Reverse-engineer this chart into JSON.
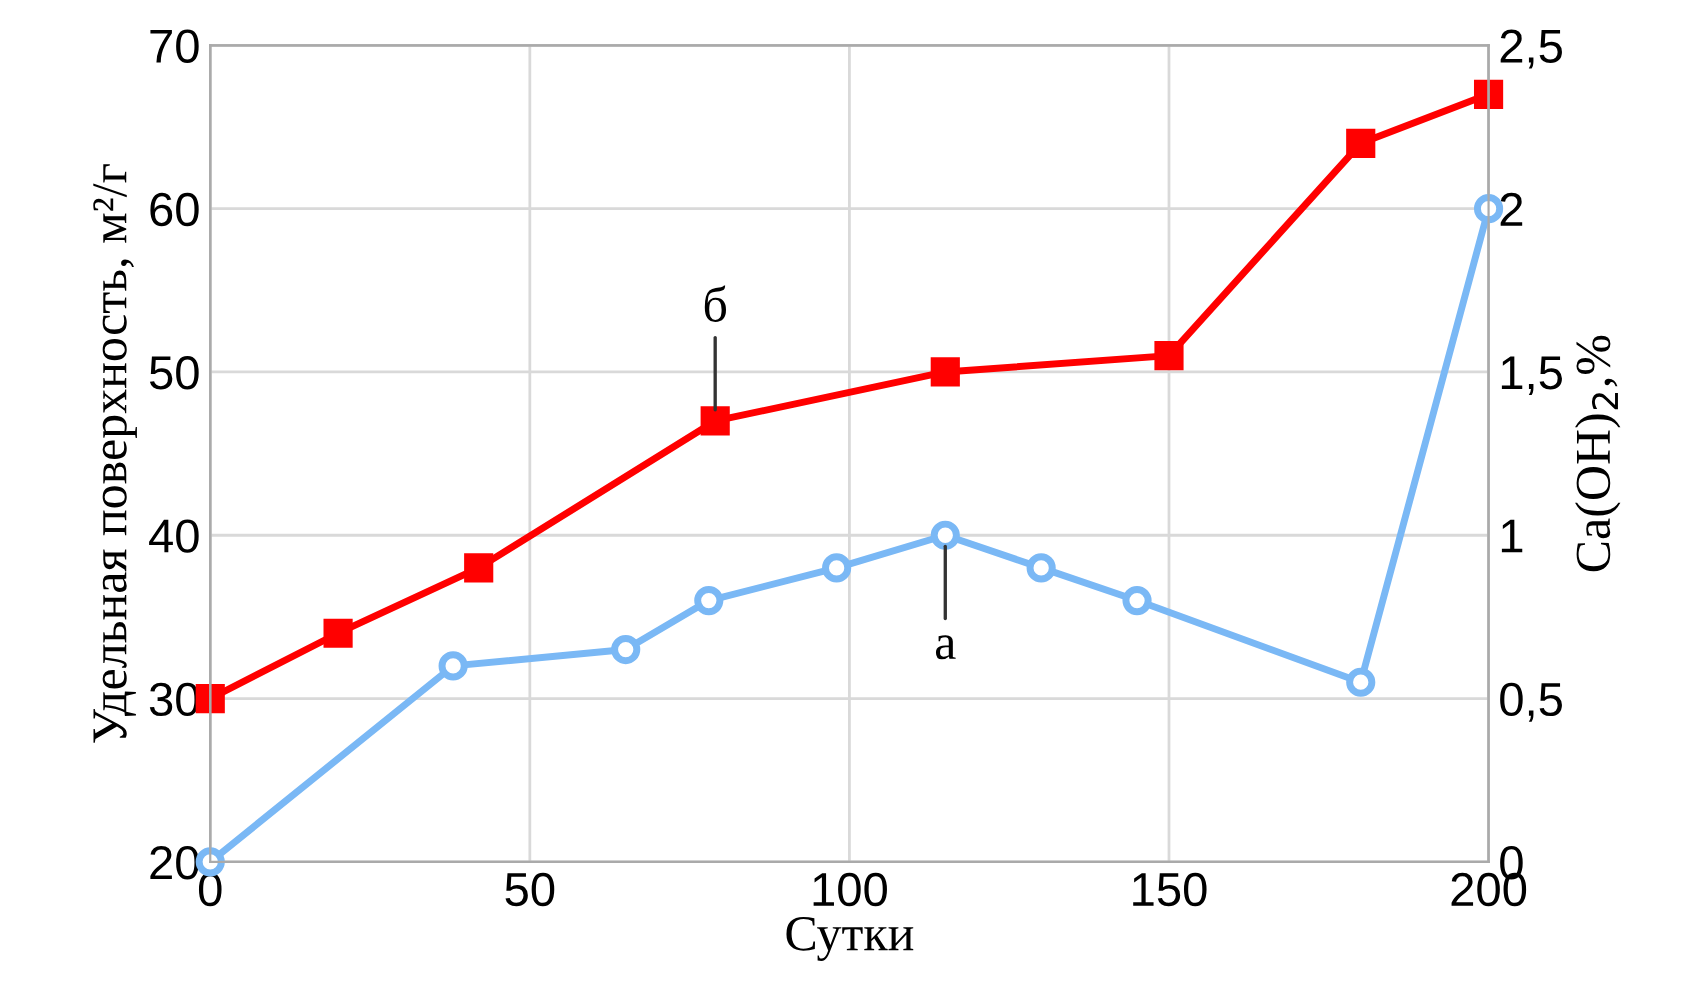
{
  "chart_data": {
    "type": "line",
    "xlabel": "Сутки",
    "ylabel": "Удельная поверхность, м²/г",
    "y2label": "Ca(OH)$_{2}$,%",
    "series": [
      {
        "color": "#ff0000",
        "marker": "square",
        "x": [
          0,
          20,
          42,
          79,
          115,
          150,
          180,
          200
        ],
        "values": [
          30,
          34,
          38,
          47,
          50,
          51,
          64,
          67
        ]
      },
      {
        "color": "#7ab8f5",
        "marker": "circle",
        "axis": "y2",
        "x": [
          0,
          38,
          65,
          78,
          98,
          115,
          130,
          145,
          180,
          200
        ],
        "values": [
          0,
          0.6,
          0.65,
          0.8,
          0.9,
          1.0,
          0.9,
          0.8,
          0.55,
          2.0
        ]
      }
    ],
    "annotations": [
      {
        "text": "б",
        "x": 79,
        "y": 47
      },
      {
        "text": "а",
        "x": 115,
        "y": 40
      }
    ],
    "xlim": [
      0,
      200
    ],
    "xticks": [
      0,
      50,
      100,
      150,
      200
    ],
    "ylim": [
      20,
      70
    ],
    "yticks": [
      20,
      30,
      40,
      50,
      60,
      70
    ],
    "y2lim": [
      0,
      2.5
    ],
    "y2ticks": [
      0,
      {
        "value": 0.5,
        "label": "0,5"
      },
      1,
      {
        "value": 1.5,
        "label": "1,5"
      },
      2,
      {
        "value": 2.5,
        "label": "2,5"
      }
    ],
    "grid": true,
    "legend": false,
    "line_style": "solid"
  }
}
